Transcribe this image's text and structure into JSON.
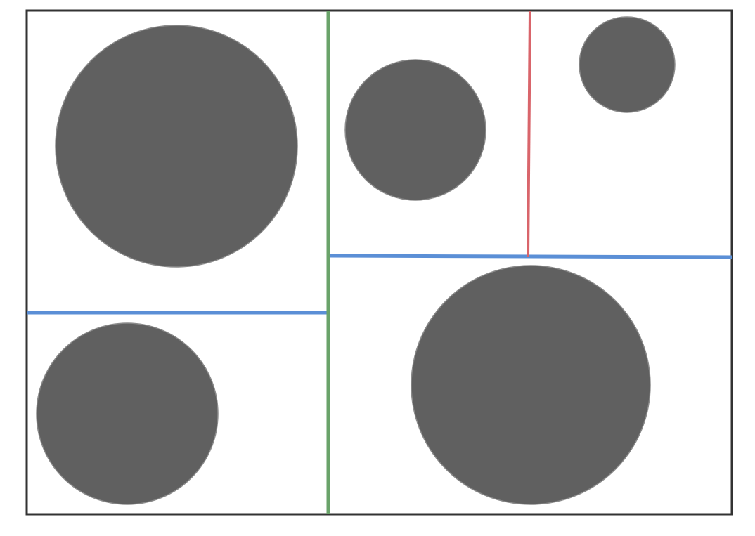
{
  "diagram": {
    "type": "space-partition",
    "colors": {
      "background": "#ffffff",
      "frame": "#333333",
      "circle_fill": "#606060",
      "circle_stroke": "#8a8a8a",
      "vertical_split_primary": "#6aa36a",
      "vertical_split_secondary": "#d9656b",
      "horizontal_split": "#5b8fd6"
    },
    "regions": 5,
    "circles": 5,
    "split_lines": 4
  }
}
